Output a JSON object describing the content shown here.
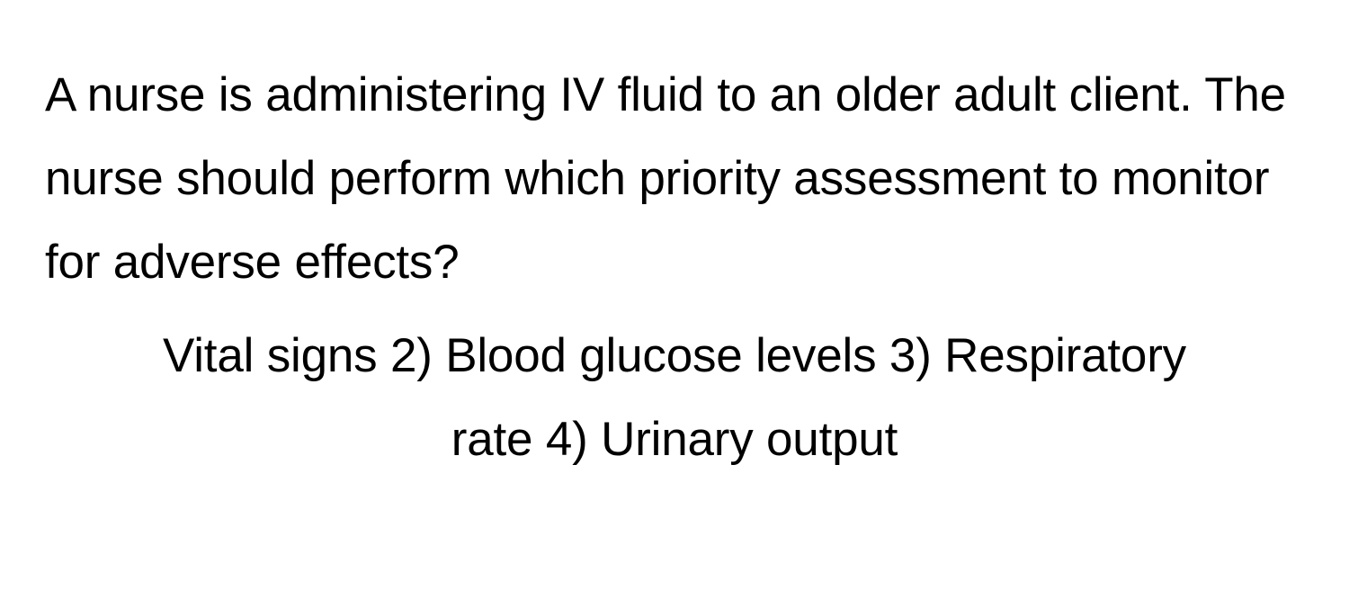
{
  "question": {
    "stem": "A nurse is administering IV fluid to an older adult client. The nurse should perform which priority assessment to monitor for adverse effects?",
    "options_text": "Vital signs 2) Blood glucose levels 3) Respiratory rate 4) Urinary output"
  },
  "style": {
    "background_color": "#ffffff",
    "text_color": "#000000",
    "font_size_pt": 40,
    "font_weight": 400,
    "line_height": 1.75
  }
}
